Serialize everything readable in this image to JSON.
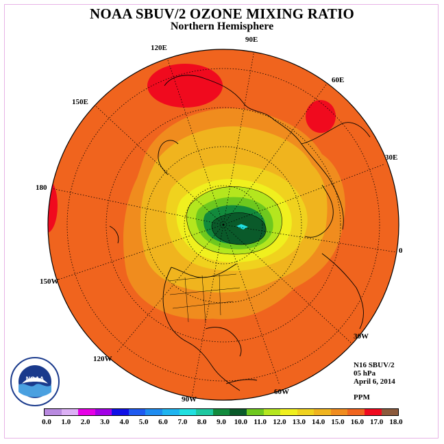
{
  "header": {
    "title": "NOAA SBUV/2 OZONE MIXING RATIO",
    "subtitle": "Northern Hemisphere"
  },
  "longitude_labels": [
    {
      "text": "90E"
    },
    {
      "text": "120E"
    },
    {
      "text": "60E"
    },
    {
      "text": "150E"
    },
    {
      "text": "30E"
    },
    {
      "text": "180"
    },
    {
      "text": "0"
    },
    {
      "text": "150W"
    },
    {
      "text": "30W"
    },
    {
      "text": "120W"
    },
    {
      "text": "60W"
    },
    {
      "text": "90W"
    }
  ],
  "info": {
    "instrument": "N16 SBUV/2",
    "level": "05 hPa",
    "date": "April 6, 2014",
    "units": "PPM"
  },
  "logo": {
    "text": "NOAA"
  },
  "colorbar": {
    "colors": [
      "#b98ae0",
      "#dcb0f5",
      "#e600e6",
      "#a200e6",
      "#1010e6",
      "#1e5af0",
      "#1e8cf0",
      "#1eb4f0",
      "#20e0e0",
      "#1ec8a0",
      "#128a3c",
      "#0a5a2a",
      "#6ec81e",
      "#b4e61e",
      "#f0f01e",
      "#f0d21e",
      "#f0b41e",
      "#f08c1e",
      "#f0641e",
      "#f00a1e",
      "#8c5a3c"
    ],
    "tick_labels": [
      "0.0",
      "1.0",
      "2.0",
      "3.0",
      "4.0",
      "5.0",
      "6.0",
      "7.0",
      "8.0",
      "9.0",
      "10.0",
      "11.0",
      "12.0",
      "13.0",
      "14.0",
      "15.0",
      "16.0",
      "17.0",
      "18.0"
    ]
  }
}
